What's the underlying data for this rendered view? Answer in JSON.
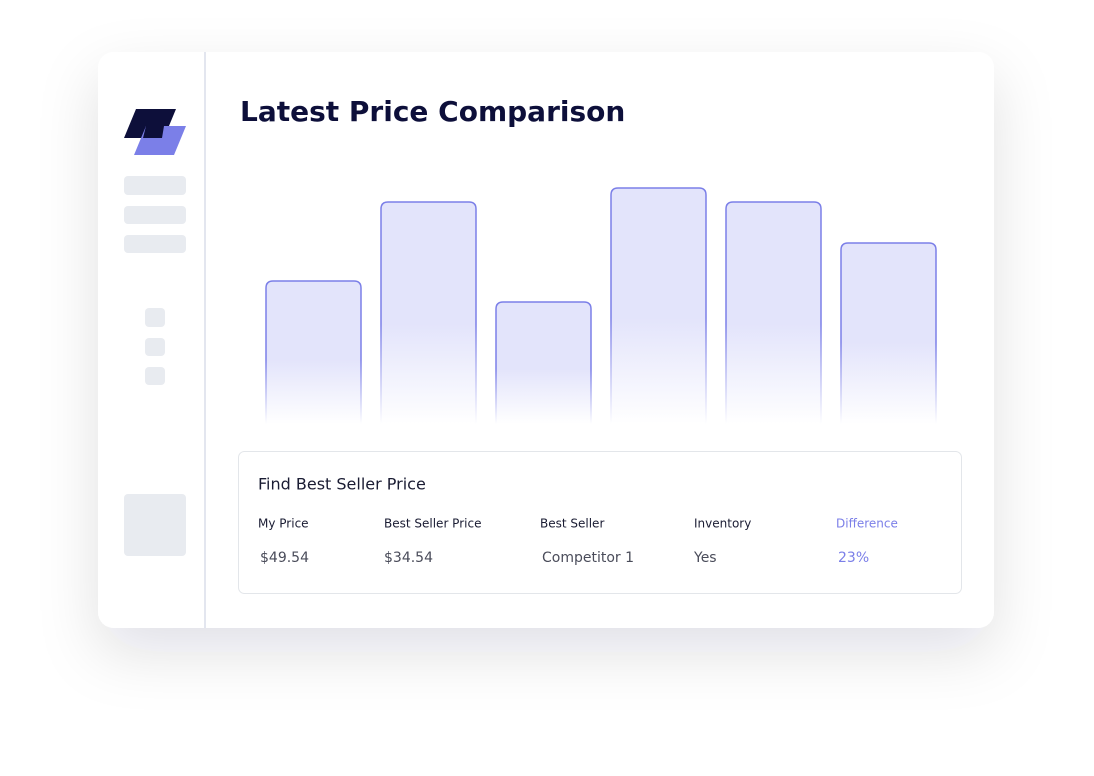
{
  "title": "Latest Price Comparison",
  "chart_data": {
    "type": "bar",
    "values": [
      143,
      222,
      122,
      236,
      222,
      181
    ],
    "color": "#e3e4fb",
    "edge_color": "#7b7fe8"
  },
  "panel": {
    "title": "Find Best Seller Price",
    "columns": [
      "My Price",
      "Best Seller Price",
      "Best Seller",
      "Inventory",
      "Difference"
    ],
    "row": [
      "$49.54",
      "$34.54",
      "Competitor 1",
      "Yes",
      "23%"
    ]
  }
}
